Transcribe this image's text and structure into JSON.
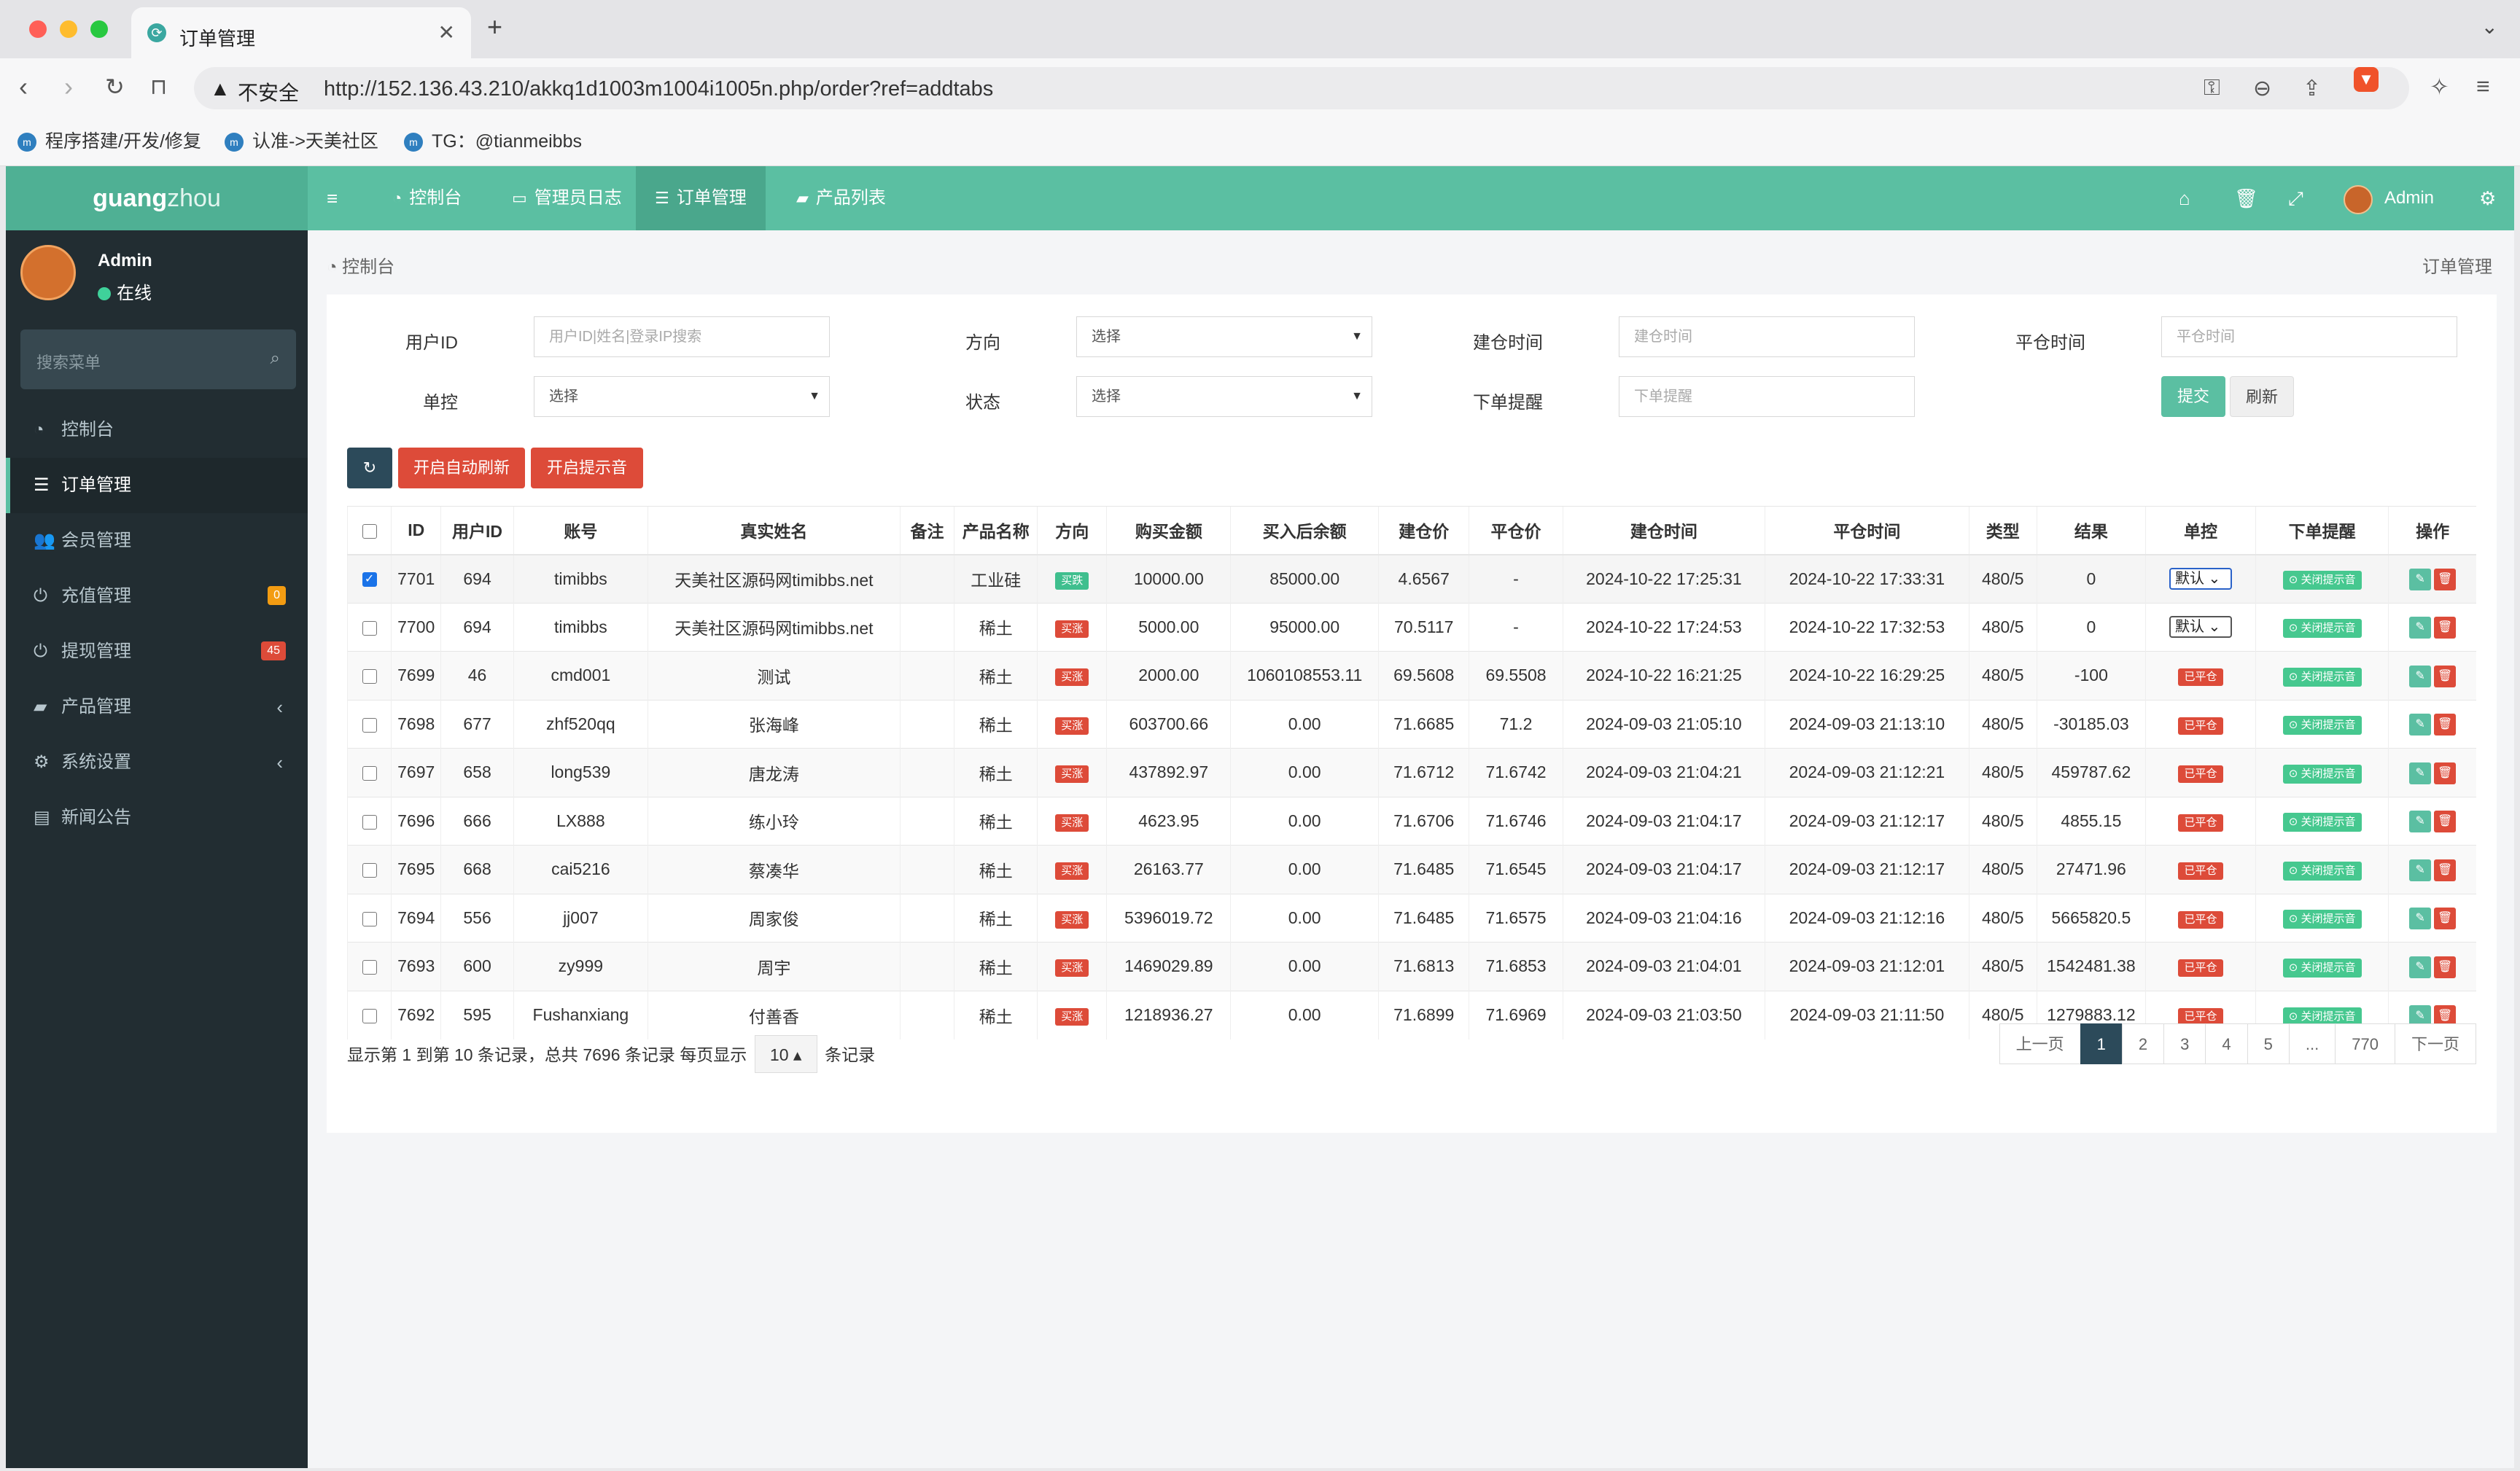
{
  "browser": {
    "tab_title": "订单管理",
    "new_tab": "+",
    "security_label": "不安全",
    "url": "http://152.136.43.210/akkq1d1003m1004i1005n.php/order?ref=addtabs",
    "bookmarks": [
      "程序搭建/开发/修复",
      "认准->天美社区",
      "TG：@tianmeibbs"
    ]
  },
  "app": {
    "logo_bold": "guang",
    "logo_light": "zhou",
    "top_nav": [
      "控制台",
      "管理员日志",
      "订单管理",
      "产品列表"
    ],
    "admin_name": "Admin"
  },
  "sidebar": {
    "user_name": "Admin",
    "user_status": "在线",
    "search_placeholder": "搜索菜单",
    "items": [
      {
        "label": "控制台",
        "icon": "dashboard-icon"
      },
      {
        "label": "订单管理",
        "icon": "list-icon"
      },
      {
        "label": "会员管理",
        "icon": "users-icon"
      },
      {
        "label": "充值管理",
        "icon": "power-icon",
        "badge": "0",
        "badge_color": "#f39c12"
      },
      {
        "label": "提现管理",
        "icon": "power-icon",
        "badge": "45",
        "badge_color": "#dd4b39"
      },
      {
        "label": "产品管理",
        "icon": "bag-icon"
      },
      {
        "label": "系统设置",
        "icon": "cogs-icon"
      },
      {
        "label": "新闻公告",
        "icon": "newspaper-icon"
      }
    ]
  },
  "breadcrumb": {
    "left": "控制台",
    "right": "订单管理"
  },
  "filters": {
    "user_id_label": "用户ID",
    "user_id_placeholder": "用户ID|姓名|登录IP搜索",
    "direction_label": "方向",
    "direction_value": "选择",
    "open_time_label": "建仓时间",
    "open_time_placeholder": "建仓时间",
    "close_time_label": "平仓时间",
    "close_time_placeholder": "平仓时间",
    "control_label": "单控",
    "control_value": "选择",
    "status_label": "状态",
    "status_value": "选择",
    "reminder_label": "下单提醒",
    "reminder_placeholder": "下单提醒",
    "submit": "提交",
    "refresh": "刷新"
  },
  "toolbar": {
    "auto_refresh": "开启自动刷新",
    "sound": "开启提示音"
  },
  "table": {
    "headers": [
      "ID",
      "用户ID",
      "账号",
      "真实姓名",
      "备注",
      "产品名称",
      "方向",
      "购买金额",
      "买入后余额",
      "建仓价",
      "平仓价",
      "建仓时间",
      "平仓时间",
      "类型",
      "结果",
      "单控",
      "下单提醒",
      "操作"
    ],
    "rows": [
      {
        "id": "7701",
        "uid": "694",
        "account": "timibbs",
        "name": "天美社区源码网timibbs.net",
        "note": "",
        "product": "工业硅",
        "dir": "买跌",
        "dir_color": "#3fbf8e",
        "amount": "10000.00",
        "balance": "85000.00",
        "open": "4.6567",
        "close": "-",
        "open_time": "2024-10-22 17:25:31",
        "close_time": "2024-10-22 17:33:31",
        "type": "480/5",
        "result": "0",
        "control": "默认",
        "control_kind": "select",
        "reminder": "关闭提示音",
        "checked": true
      },
      {
        "id": "7700",
        "uid": "694",
        "account": "timibbs",
        "name": "天美社区源码网timibbs.net",
        "note": "",
        "product": "稀土",
        "dir": "买涨",
        "dir_color": "#dd4b39",
        "amount": "5000.00",
        "balance": "95000.00",
        "open": "70.5117",
        "close": "-",
        "open_time": "2024-10-22 17:24:53",
        "close_time": "2024-10-22 17:32:53",
        "type": "480/5",
        "result": "0",
        "control": "默认",
        "control_kind": "select",
        "reminder": "关闭提示音",
        "checked": false
      },
      {
        "id": "7699",
        "uid": "46",
        "account": "cmd001",
        "name": "测试",
        "note": "",
        "product": "稀土",
        "dir": "买涨",
        "dir_color": "#dd4b39",
        "amount": "2000.00",
        "balance": "1060108553.11",
        "open": "69.5608",
        "close": "69.5508",
        "open_time": "2024-10-22 16:21:25",
        "close_time": "2024-10-22 16:29:25",
        "type": "480/5",
        "result": "-100",
        "control": "已平仓",
        "control_kind": "tag",
        "reminder": "关闭提示音",
        "checked": false
      },
      {
        "id": "7698",
        "uid": "677",
        "account": "zhf520qq",
        "name": "张海峰",
        "note": "",
        "product": "稀土",
        "dir": "买涨",
        "dir_color": "#dd4b39",
        "amount": "603700.66",
        "balance": "0.00",
        "open": "71.6685",
        "close": "71.2",
        "open_time": "2024-09-03 21:05:10",
        "close_time": "2024-09-03 21:13:10",
        "type": "480/5",
        "result": "-30185.03",
        "control": "已平仓",
        "control_kind": "tag",
        "reminder": "关闭提示音",
        "checked": false
      },
      {
        "id": "7697",
        "uid": "658",
        "account": "long539",
        "name": "唐龙涛",
        "note": "",
        "product": "稀土",
        "dir": "买涨",
        "dir_color": "#dd4b39",
        "amount": "437892.97",
        "balance": "0.00",
        "open": "71.6712",
        "close": "71.6742",
        "open_time": "2024-09-03 21:04:21",
        "close_time": "2024-09-03 21:12:21",
        "type": "480/5",
        "result": "459787.62",
        "control": "已平仓",
        "control_kind": "tag",
        "reminder": "关闭提示音",
        "checked": false
      },
      {
        "id": "7696",
        "uid": "666",
        "account": "LX888",
        "name": "练小玲",
        "note": "",
        "product": "稀土",
        "dir": "买涨",
        "dir_color": "#dd4b39",
        "amount": "4623.95",
        "balance": "0.00",
        "open": "71.6706",
        "close": "71.6746",
        "open_time": "2024-09-03 21:04:17",
        "close_time": "2024-09-03 21:12:17",
        "type": "480/5",
        "result": "4855.15",
        "control": "已平仓",
        "control_kind": "tag",
        "reminder": "关闭提示音",
        "checked": false
      },
      {
        "id": "7695",
        "uid": "668",
        "account": "cai5216",
        "name": "蔡凑华",
        "note": "",
        "product": "稀土",
        "dir": "买涨",
        "dir_color": "#dd4b39",
        "amount": "26163.77",
        "balance": "0.00",
        "open": "71.6485",
        "close": "71.6545",
        "open_time": "2024-09-03 21:04:17",
        "close_time": "2024-09-03 21:12:17",
        "type": "480/5",
        "result": "27471.96",
        "control": "已平仓",
        "control_kind": "tag",
        "reminder": "关闭提示音",
        "checked": false
      },
      {
        "id": "7694",
        "uid": "556",
        "account": "jj007",
        "name": "周家俊",
        "note": "",
        "product": "稀土",
        "dir": "买涨",
        "dir_color": "#dd4b39",
        "amount": "5396019.72",
        "balance": "0.00",
        "open": "71.6485",
        "close": "71.6575",
        "open_time": "2024-09-03 21:04:16",
        "close_time": "2024-09-03 21:12:16",
        "type": "480/5",
        "result": "5665820.5",
        "control": "已平仓",
        "control_kind": "tag",
        "reminder": "关闭提示音",
        "checked": false
      },
      {
        "id": "7693",
        "uid": "600",
        "account": "zy999",
        "name": "周宇",
        "note": "",
        "product": "稀土",
        "dir": "买涨",
        "dir_color": "#dd4b39",
        "amount": "1469029.89",
        "balance": "0.00",
        "open": "71.6813",
        "close": "71.6853",
        "open_time": "2024-09-03 21:04:01",
        "close_time": "2024-09-03 21:12:01",
        "type": "480/5",
        "result": "1542481.38",
        "control": "已平仓",
        "control_kind": "tag",
        "reminder": "关闭提示音",
        "checked": false
      },
      {
        "id": "7692",
        "uid": "595",
        "account": "Fushanxiang",
        "name": "付善香",
        "note": "",
        "product": "稀土",
        "dir": "买涨",
        "dir_color": "#dd4b39",
        "amount": "1218936.27",
        "balance": "0.00",
        "open": "71.6899",
        "close": "71.6969",
        "open_time": "2024-09-03 21:03:50",
        "close_time": "2024-09-03 21:11:50",
        "type": "480/5",
        "result": "1279883.12",
        "control": "已平仓",
        "control_kind": "tag",
        "reminder": "关闭提示音",
        "checked": false
      }
    ]
  },
  "pagination": {
    "info_prefix": "显示第 1 到第 10 条记录，总共 7696 条记录 每页显示",
    "per_page": "10",
    "info_suffix": "条记录",
    "prev": "上一页",
    "pages": [
      "1",
      "2",
      "3",
      "4",
      "5",
      "...",
      "770"
    ],
    "current": "1",
    "next": "下一页"
  }
}
